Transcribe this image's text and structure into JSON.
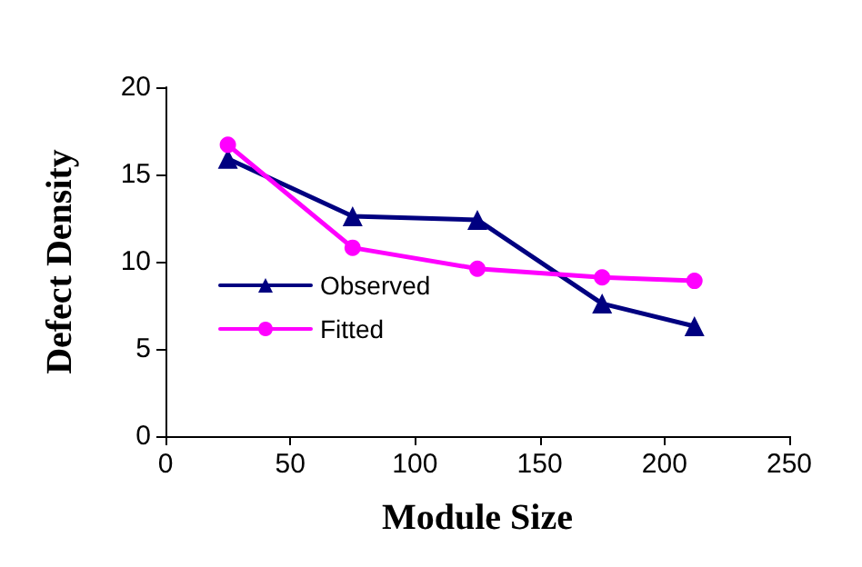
{
  "chart_data": {
    "type": "line",
    "xlabel": "Module Size",
    "ylabel": "Defect Density",
    "x": [
      25,
      75,
      125,
      175,
      212
    ],
    "series": [
      {
        "name": "Observed",
        "color": "#000080",
        "marker": "triangle",
        "values": [
          15.9,
          12.6,
          12.4,
          7.6,
          6.3
        ]
      },
      {
        "name": "Fitted",
        "color": "#ff00ff",
        "marker": "circle",
        "values": [
          16.7,
          10.8,
          9.6,
          9.1,
          8.9
        ]
      }
    ],
    "xlim": [
      0,
      250
    ],
    "xticks": [
      0,
      50,
      100,
      150,
      200,
      250
    ],
    "ylim": [
      0,
      20
    ],
    "yticks": [
      0,
      5,
      10,
      15,
      20
    ],
    "grid": false,
    "legend": "left",
    "line_style": "solid"
  }
}
